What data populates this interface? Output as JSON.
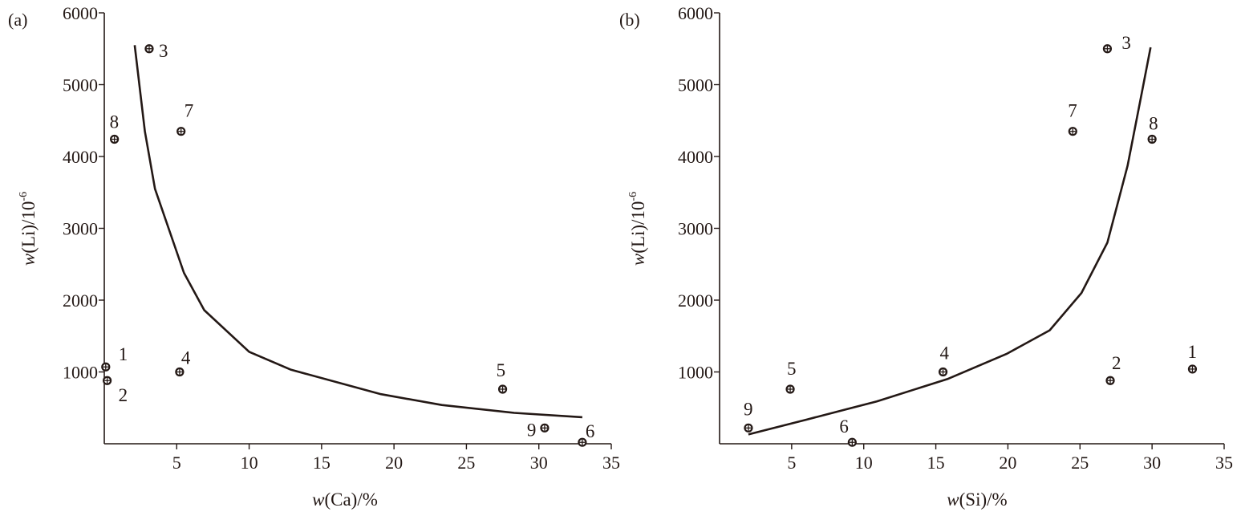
{
  "chart_data": [
    {
      "type": "scatter",
      "panel_label": "(a)",
      "xlabel_italic": "w",
      "xlabel_rest": "(Ca)/%",
      "ylabel_italic": "w",
      "ylabel_rest": "(Li)/10",
      "ylabel_sup": "-6",
      "xlim": [
        0,
        35
      ],
      "ylim": [
        0,
        6000
      ],
      "xticks": [
        5,
        10,
        15,
        20,
        25,
        30,
        35
      ],
      "yticks": [
        1000,
        2000,
        3000,
        4000,
        5000,
        6000
      ],
      "points": [
        {
          "label": "1",
          "x": 0.1,
          "y": 1070
        },
        {
          "label": "2",
          "x": 0.2,
          "y": 880
        },
        {
          "label": "3",
          "x": 3.1,
          "y": 5500
        },
        {
          "label": "4",
          "x": 5.2,
          "y": 1000
        },
        {
          "label": "5",
          "x": 27.5,
          "y": 760
        },
        {
          "label": "6",
          "x": 33.0,
          "y": 20
        },
        {
          "label": "7",
          "x": 5.3,
          "y": 4350
        },
        {
          "label": "8",
          "x": 0.7,
          "y": 4240
        },
        {
          "label": "9",
          "x": 30.4,
          "y": 220
        }
      ],
      "curve": [
        {
          "x": 2.1,
          "y": 5550
        },
        {
          "x": 2.8,
          "y": 4350
        },
        {
          "x": 3.5,
          "y": 3550
        },
        {
          "x": 5.5,
          "y": 2380
        },
        {
          "x": 6.9,
          "y": 1860
        },
        {
          "x": 10.0,
          "y": 1280
        },
        {
          "x": 12.9,
          "y": 1030
        },
        {
          "x": 19.1,
          "y": 690
        },
        {
          "x": 23.3,
          "y": 540
        },
        {
          "x": 28.3,
          "y": 430
        },
        {
          "x": 33.0,
          "y": 370
        }
      ]
    },
    {
      "type": "scatter",
      "panel_label": "(b)",
      "xlabel_italic": "w",
      "xlabel_rest": "(Si)/%",
      "ylabel_italic": "w",
      "ylabel_rest": "(Li)/10",
      "ylabel_sup": "-6",
      "xlim": [
        0,
        35
      ],
      "ylim": [
        0,
        6000
      ],
      "xticks": [
        5,
        10,
        15,
        20,
        25,
        30,
        35
      ],
      "yticks": [
        1000,
        2000,
        3000,
        4000,
        5000,
        6000
      ],
      "points": [
        {
          "label": "1",
          "x": 32.8,
          "y": 1040
        },
        {
          "label": "2",
          "x": 27.1,
          "y": 880
        },
        {
          "label": "3",
          "x": 26.9,
          "y": 5500
        },
        {
          "label": "4",
          "x": 15.5,
          "y": 1000
        },
        {
          "label": "5",
          "x": 4.9,
          "y": 760
        },
        {
          "label": "6",
          "x": 9.2,
          "y": 20
        },
        {
          "label": "7",
          "x": 24.5,
          "y": 4350
        },
        {
          "label": "8",
          "x": 30.0,
          "y": 4240
        },
        {
          "label": "9",
          "x": 2.0,
          "y": 220
        }
      ],
      "curve": [
        {
          "x": 2.0,
          "y": 130
        },
        {
          "x": 6.1,
          "y": 340
        },
        {
          "x": 10.9,
          "y": 590
        },
        {
          "x": 15.8,
          "y": 900
        },
        {
          "x": 19.9,
          "y": 1250
        },
        {
          "x": 22.9,
          "y": 1580
        },
        {
          "x": 25.1,
          "y": 2100
        },
        {
          "x": 26.9,
          "y": 2800
        },
        {
          "x": 28.3,
          "y": 3870
        },
        {
          "x": 29.3,
          "y": 4900
        },
        {
          "x": 29.9,
          "y": 5520
        }
      ]
    }
  ]
}
